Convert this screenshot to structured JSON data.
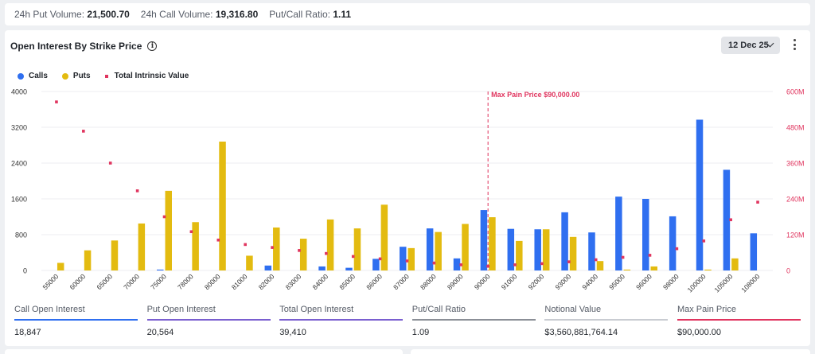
{
  "topbar": {
    "put_volume_label": "24h Put Volume:",
    "put_volume": "21,500.70",
    "call_volume_label": "24h Call Volume:",
    "call_volume": "19,316.80",
    "ratio_label": "Put/Call Ratio:",
    "ratio": "1.11"
  },
  "card": {
    "title": "Open Interest By Strike Price",
    "date": "12 Dec 25"
  },
  "legend": [
    {
      "label": "Calls",
      "color": "#2f6ff0"
    },
    {
      "label": "Puts",
      "color": "#e3bb10"
    },
    {
      "label": "Total Intrinsic Value",
      "color": "#e0355f"
    }
  ],
  "chart_data": {
    "type": "bar",
    "categories": [
      "55000",
      "60000",
      "65000",
      "70000",
      "75000",
      "78000",
      "80000",
      "81000",
      "82000",
      "83000",
      "84000",
      "85000",
      "86000",
      "87000",
      "88000",
      "89000",
      "90000",
      "91000",
      "92000",
      "93000",
      "94000",
      "95000",
      "96000",
      "98000",
      "100000",
      "105000",
      "108000"
    ],
    "series": [
      {
        "name": "Calls",
        "color": "#2f6ff0",
        "axis": "left",
        "values": [
          0,
          0,
          0,
          0,
          20,
          0,
          0,
          0,
          110,
          0,
          90,
          60,
          260,
          530,
          940,
          270,
          1350,
          930,
          920,
          1300,
          850,
          1650,
          1600,
          1210,
          3370,
          2250,
          830
        ]
      },
      {
        "name": "Puts",
        "color": "#e3bb10",
        "axis": "left",
        "values": [
          170,
          450,
          670,
          1050,
          1780,
          1080,
          2880,
          330,
          960,
          710,
          1140,
          940,
          1470,
          500,
          860,
          1040,
          1190,
          660,
          920,
          750,
          210,
          20,
          90,
          0,
          20,
          270,
          0
        ]
      },
      {
        "name": "Total Intrinsic Value",
        "color": "#e0355f",
        "axis": "right",
        "type": "scatter",
        "values": [
          565000000,
          467000000,
          360000000,
          267000000,
          180000000,
          130000000,
          102000000,
          87000000,
          77000000,
          67000000,
          57000000,
          47000000,
          39000000,
          32000000,
          25000000,
          19000000,
          14000000,
          19000000,
          23000000,
          29000000,
          36000000,
          44000000,
          51000000,
          73000000,
          99000000,
          170000000,
          229000000
        ]
      }
    ],
    "y_left": {
      "ylim": [
        0,
        4000
      ],
      "ticks": [
        "4000",
        "3200",
        "2400",
        "1600",
        "800",
        "0"
      ]
    },
    "y_right": {
      "ylim": [
        0,
        600000000
      ],
      "ticks": [
        "600M",
        "480M",
        "360M",
        "240M",
        "120M",
        "0"
      ]
    },
    "annotation": {
      "label": "Max Pain Price $90,000.00",
      "category": "90000",
      "color": "#e0355f"
    },
    "grid": true,
    "legend_position": "top-left"
  },
  "stats": [
    {
      "label": "Call Open Interest",
      "value": "18,847",
      "color": "#2f6ff0"
    },
    {
      "label": "Put Open Interest",
      "value": "20,564",
      "color": "#7a5fd0"
    },
    {
      "label": "Total Open Interest",
      "value": "39,410",
      "color": "#7a5fd0"
    },
    {
      "label": "Put/Call Ratio",
      "value": "1.09",
      "color": "#8b8f97"
    },
    {
      "label": "Notional Value",
      "value": "$3,560,881,764.14",
      "color": "#c9ccd2"
    },
    {
      "label": "Max Pain Price",
      "value": "$90,000.00",
      "color": "#e0355f"
    }
  ]
}
